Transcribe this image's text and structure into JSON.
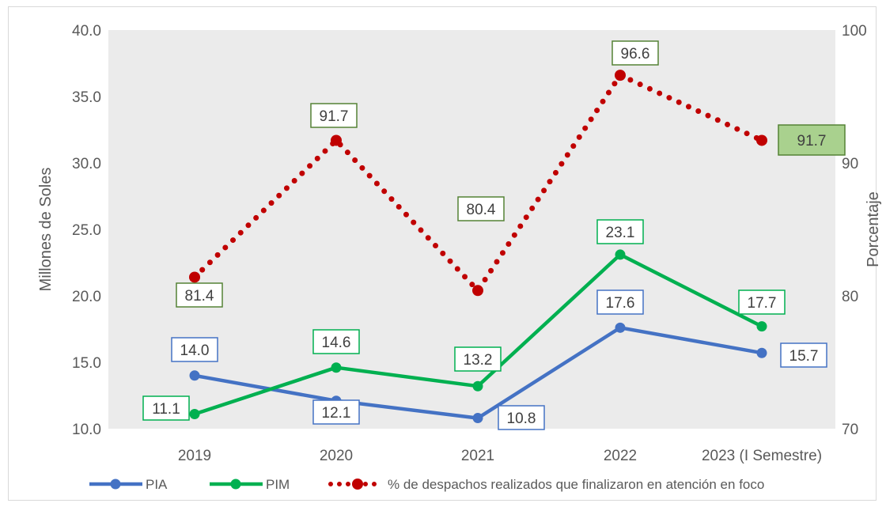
{
  "chart_data": {
    "type": "line",
    "categories": [
      "2019",
      "2020",
      "2021",
      "2022",
      "2023 (I Semestre)"
    ],
    "ylabel": "Millones de Soles",
    "y2label": "Porcentaje",
    "ylim": [
      10,
      40
    ],
    "yticks": [
      "10.0",
      "15.0",
      "20.0",
      "25.0",
      "30.0",
      "35.0",
      "40.0"
    ],
    "y2lim": [
      70,
      100
    ],
    "y2ticks": [
      "70",
      "80",
      "90",
      "100"
    ],
    "grid": false,
    "legend_position": "bottom",
    "series": [
      {
        "name": "PIA",
        "axis": "left",
        "color": "#4472c4",
        "style": "solid",
        "values": [
          14.0,
          12.1,
          10.8,
          17.6,
          15.7
        ],
        "labels": [
          "14.0",
          "12.1",
          "10.8",
          "17.6",
          "15.7"
        ]
      },
      {
        "name": "PIM",
        "axis": "left",
        "color": "#00b050",
        "style": "solid",
        "values": [
          11.1,
          14.6,
          13.2,
          23.1,
          17.7
        ],
        "labels": [
          "11.1",
          "14.6",
          "13.2",
          "23.1",
          "17.7"
        ]
      },
      {
        "name": "% de despachos realizados que finalizaron en atención en foco",
        "axis": "right",
        "color": "#c00000",
        "style": "dotted",
        "values": [
          81.4,
          91.7,
          80.4,
          96.6,
          91.7
        ],
        "labels": [
          "81.4",
          "91.7",
          "80.4",
          "96.6",
          "91.7"
        ]
      }
    ],
    "plot_background": "#ebebeb",
    "label_box_colors": {
      "PIA": "#4472c4",
      "PIM": "#00b050",
      "pct": "#548235",
      "pct_highlight_fill": "#a9d18e"
    }
  }
}
